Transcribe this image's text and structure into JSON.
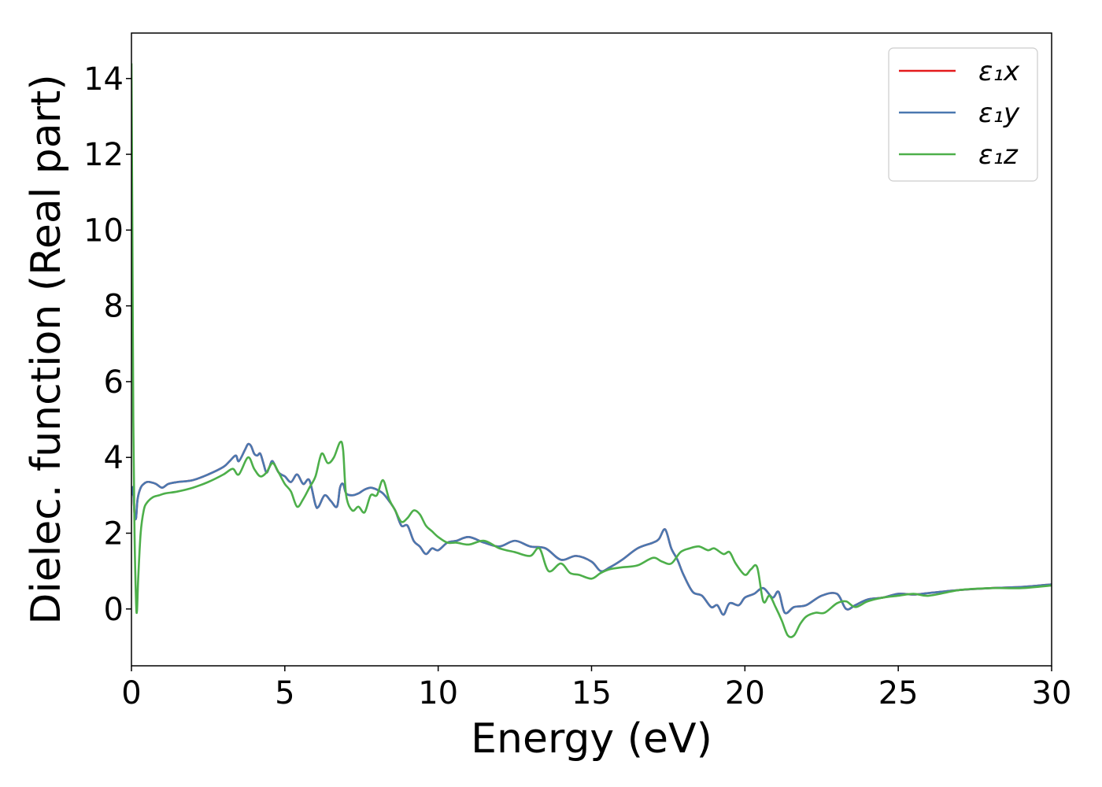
{
  "chart_data": {
    "type": "line",
    "xlabel": "Energy (eV)",
    "ylabel": "Dielec. function (Real part)",
    "xlim": [
      0,
      30
    ],
    "ylim": [
      -1.5,
      15.2
    ],
    "xticks": [
      0,
      5,
      10,
      15,
      20,
      25,
      30
    ],
    "yticks": [
      0,
      2,
      4,
      6,
      8,
      10,
      12,
      14
    ],
    "grid": false,
    "legend_position": "top-right",
    "series": [
      {
        "name": "ε₁x",
        "color": "#e41a1c",
        "x": [
          0.0,
          0.05,
          0.1,
          0.15,
          0.2,
          0.3,
          0.4,
          0.5,
          0.6,
          0.8,
          1.0,
          1.2,
          1.5,
          2.0,
          2.5,
          3.0,
          3.2,
          3.4,
          3.5,
          3.7,
          3.8,
          3.9,
          4.0,
          4.1,
          4.2,
          4.3,
          4.4,
          4.5,
          4.6,
          4.8,
          5.0,
          5.2,
          5.4,
          5.6,
          5.8,
          6.0,
          6.1,
          6.3,
          6.5,
          6.7,
          6.8,
          6.9,
          7.0,
          7.2,
          7.4,
          7.6,
          7.8,
          8.0,
          8.2,
          8.4,
          8.6,
          8.8,
          9.0,
          9.2,
          9.4,
          9.6,
          9.8,
          10.0,
          10.3,
          10.6,
          11.0,
          11.5,
          12.0,
          12.5,
          13.0,
          13.5,
          14.0,
          14.5,
          15.0,
          15.3,
          15.6,
          16.0,
          16.5,
          17.0,
          17.2,
          17.4,
          17.6,
          17.8,
          18.0,
          18.3,
          18.6,
          18.9,
          19.1,
          19.3,
          19.5,
          19.8,
          20.0,
          20.3,
          20.6,
          20.9,
          21.1,
          21.3,
          21.6,
          22.0,
          22.5,
          23.0,
          23.3,
          23.6,
          24.0,
          24.5,
          25.0,
          25.5,
          26.0,
          27.0,
          28.0,
          29.0,
          30.0
        ],
        "y": [
          3.0,
          3.2,
          2.5,
          2.4,
          2.9,
          3.2,
          3.3,
          3.35,
          3.35,
          3.3,
          3.2,
          3.3,
          3.35,
          3.4,
          3.55,
          3.75,
          3.9,
          4.05,
          3.9,
          4.2,
          4.35,
          4.3,
          4.1,
          4.05,
          4.1,
          3.85,
          3.6,
          3.75,
          3.9,
          3.6,
          3.5,
          3.35,
          3.55,
          3.3,
          3.4,
          2.75,
          2.7,
          3.0,
          2.85,
          2.7,
          3.2,
          3.3,
          3.05,
          3.0,
          3.05,
          3.15,
          3.2,
          3.15,
          3.05,
          2.85,
          2.6,
          2.2,
          2.2,
          1.8,
          1.65,
          1.45,
          1.6,
          1.55,
          1.75,
          1.8,
          1.9,
          1.75,
          1.65,
          1.8,
          1.65,
          1.6,
          1.3,
          1.4,
          1.25,
          1.0,
          1.1,
          1.3,
          1.6,
          1.75,
          1.85,
          2.1,
          1.6,
          1.3,
          0.9,
          0.45,
          0.35,
          0.05,
          0.1,
          -0.15,
          0.15,
          0.1,
          0.3,
          0.4,
          0.55,
          0.3,
          0.45,
          -0.1,
          0.05,
          0.1,
          0.35,
          0.4,
          0.0,
          0.1,
          0.25,
          0.3,
          0.4,
          0.38,
          0.42,
          0.5,
          0.55,
          0.58,
          0.65
        ]
      },
      {
        "name": "ε₁y",
        "color": "#4a78b0",
        "x": [
          0.0,
          0.05,
          0.1,
          0.15,
          0.2,
          0.3,
          0.4,
          0.5,
          0.6,
          0.8,
          1.0,
          1.2,
          1.5,
          2.0,
          2.5,
          3.0,
          3.2,
          3.4,
          3.5,
          3.7,
          3.8,
          3.9,
          4.0,
          4.1,
          4.2,
          4.3,
          4.4,
          4.5,
          4.6,
          4.8,
          5.0,
          5.2,
          5.4,
          5.6,
          5.8,
          6.0,
          6.1,
          6.3,
          6.5,
          6.7,
          6.8,
          6.9,
          7.0,
          7.2,
          7.4,
          7.6,
          7.8,
          8.0,
          8.2,
          8.4,
          8.6,
          8.8,
          9.0,
          9.2,
          9.4,
          9.6,
          9.8,
          10.0,
          10.3,
          10.6,
          11.0,
          11.5,
          12.0,
          12.5,
          13.0,
          13.5,
          14.0,
          14.5,
          15.0,
          15.3,
          15.6,
          16.0,
          16.5,
          17.0,
          17.2,
          17.4,
          17.6,
          17.8,
          18.0,
          18.3,
          18.6,
          18.9,
          19.1,
          19.3,
          19.5,
          19.8,
          20.0,
          20.3,
          20.6,
          20.9,
          21.1,
          21.3,
          21.6,
          22.0,
          22.5,
          23.0,
          23.3,
          23.6,
          24.0,
          24.5,
          25.0,
          25.5,
          26.0,
          27.0,
          28.0,
          29.0,
          30.0
        ],
        "y": [
          3.0,
          3.2,
          2.5,
          2.4,
          2.9,
          3.2,
          3.3,
          3.35,
          3.35,
          3.3,
          3.2,
          3.3,
          3.35,
          3.4,
          3.55,
          3.75,
          3.9,
          4.05,
          3.9,
          4.2,
          4.35,
          4.3,
          4.1,
          4.05,
          4.1,
          3.85,
          3.6,
          3.75,
          3.9,
          3.6,
          3.5,
          3.35,
          3.55,
          3.3,
          3.4,
          2.75,
          2.7,
          3.0,
          2.85,
          2.7,
          3.2,
          3.3,
          3.05,
          3.0,
          3.05,
          3.15,
          3.2,
          3.15,
          3.05,
          2.85,
          2.6,
          2.2,
          2.2,
          1.8,
          1.65,
          1.45,
          1.6,
          1.55,
          1.75,
          1.8,
          1.9,
          1.75,
          1.65,
          1.8,
          1.65,
          1.6,
          1.3,
          1.4,
          1.25,
          1.0,
          1.1,
          1.3,
          1.6,
          1.75,
          1.85,
          2.1,
          1.6,
          1.3,
          0.9,
          0.45,
          0.35,
          0.05,
          0.1,
          -0.15,
          0.15,
          0.1,
          0.3,
          0.4,
          0.55,
          0.3,
          0.45,
          -0.1,
          0.05,
          0.1,
          0.35,
          0.4,
          0.0,
          0.1,
          0.25,
          0.3,
          0.4,
          0.38,
          0.42,
          0.5,
          0.55,
          0.58,
          0.65
        ]
      },
      {
        "name": "ε₁z",
        "color": "#4daf4a",
        "x": [
          0.0,
          0.03,
          0.06,
          0.1,
          0.15,
          0.18,
          0.22,
          0.3,
          0.4,
          0.5,
          0.7,
          0.9,
          1.1,
          1.5,
          2.0,
          2.5,
          3.0,
          3.3,
          3.5,
          3.8,
          4.0,
          4.2,
          4.4,
          4.6,
          4.8,
          5.0,
          5.2,
          5.4,
          5.6,
          5.8,
          6.0,
          6.2,
          6.4,
          6.6,
          6.8,
          6.9,
          7.0,
          7.2,
          7.4,
          7.6,
          7.8,
          8.0,
          8.2,
          8.4,
          8.6,
          8.8,
          9.0,
          9.2,
          9.4,
          9.6,
          9.8,
          10.0,
          10.3,
          10.6,
          11.0,
          11.5,
          12.0,
          12.5,
          13.0,
          13.3,
          13.6,
          14.0,
          14.3,
          14.6,
          15.0,
          15.3,
          15.6,
          16.0,
          16.5,
          17.0,
          17.3,
          17.6,
          17.9,
          18.2,
          18.5,
          18.8,
          19.0,
          19.3,
          19.5,
          19.7,
          20.0,
          20.2,
          20.4,
          20.6,
          20.8,
          21.0,
          21.2,
          21.4,
          21.6,
          21.8,
          22.0,
          22.3,
          22.6,
          23.0,
          23.3,
          23.6,
          24.0,
          24.5,
          25.0,
          25.5,
          26.0,
          27.0,
          28.0,
          29.0,
          30.0
        ],
        "y": [
          14.4,
          10.0,
          5.0,
          2.0,
          0.2,
          -0.05,
          0.8,
          2.0,
          2.6,
          2.8,
          2.95,
          3.0,
          3.05,
          3.1,
          3.2,
          3.35,
          3.55,
          3.7,
          3.55,
          4.0,
          3.7,
          3.5,
          3.6,
          3.85,
          3.6,
          3.3,
          3.1,
          2.7,
          2.9,
          3.2,
          3.5,
          4.1,
          3.85,
          4.0,
          4.4,
          4.2,
          3.0,
          2.6,
          2.7,
          2.55,
          3.0,
          3.0,
          3.4,
          2.9,
          2.6,
          2.3,
          2.4,
          2.6,
          2.5,
          2.2,
          2.05,
          1.9,
          1.75,
          1.75,
          1.7,
          1.8,
          1.6,
          1.5,
          1.4,
          1.6,
          1.0,
          1.2,
          0.95,
          0.9,
          0.8,
          0.95,
          1.05,
          1.1,
          1.15,
          1.35,
          1.25,
          1.2,
          1.5,
          1.6,
          1.65,
          1.55,
          1.6,
          1.45,
          1.5,
          1.2,
          0.9,
          1.05,
          1.1,
          0.2,
          0.35,
          0.05,
          -0.3,
          -0.7,
          -0.7,
          -0.4,
          -0.2,
          -0.1,
          -0.1,
          0.15,
          0.2,
          0.05,
          0.2,
          0.3,
          0.35,
          0.4,
          0.35,
          0.5,
          0.55,
          0.55,
          0.62
        ]
      }
    ]
  }
}
